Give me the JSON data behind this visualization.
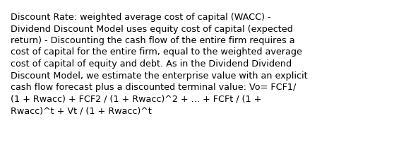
{
  "background_color": "#ffffff",
  "text_color": "#000000",
  "font_size": 9.2,
  "text": "Discount Rate: weighted average cost of capital (WACC) -\nDividend Discount Model uses equity cost of capital (expected\nreturn) - Discounting the cash flow of the entire firm requires a\ncost of capital for the entire firm, equal to the weighted average\ncost of capital of equity and debt. As in the Dividend Dividend\nDiscount Model, we estimate the enterprise value with an explicit\ncash flow forecast plus a discounted terminal value: Vo= FCF1/\n(1 + Rwacc) + FCF2 / (1 + Rwacc)^2 + ... + FCFt / (1 +\nRwacc)^t + Vt / (1 + Rwacc)^t",
  "figsize": [
    5.58,
    2.3
  ],
  "dpi": 100
}
